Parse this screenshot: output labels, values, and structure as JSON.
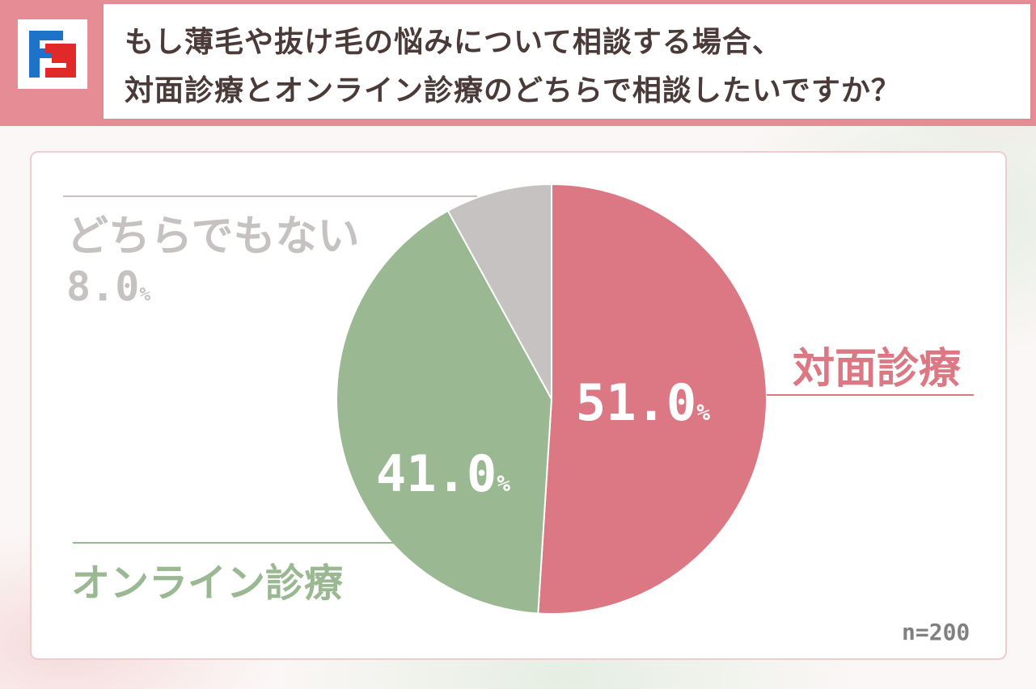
{
  "header": {
    "title_line1": "もし薄毛や抜け毛の悩みについて相談する場合、",
    "title_line2": "対面診療とオンライン診療のどちらで相談したいですか？",
    "logo_icon": "brand-logo-icon",
    "colors": {
      "band": "#e68c94",
      "logo_blue": "#1e73c8",
      "logo_red": "#e02a2a"
    }
  },
  "sample_size": "n=200",
  "chart_data": {
    "type": "pie",
    "title": "もし薄毛や抜け毛の悩みについて相談する場合、対面診療とオンライン診療のどちらで相談したいですか？",
    "start_angle_deg": 0,
    "direction": "clockwise",
    "unit": "%",
    "slices": [
      {
        "label": "対面診療",
        "value": 51.0,
        "value_text": "51.0",
        "color": "#db7883",
        "label_color": "#db7883",
        "value_inside": true
      },
      {
        "label": "オンライン診療",
        "value": 41.0,
        "value_text": "41.0",
        "color": "#9ab891",
        "label_color": "#9ab891",
        "value_inside": true
      },
      {
        "label": "どちらでもない",
        "value": 8.0,
        "value_text": "8.0",
        "color": "#c5c2c1",
        "label_color": "#c5c2c1",
        "value_inside": false
      }
    ]
  }
}
